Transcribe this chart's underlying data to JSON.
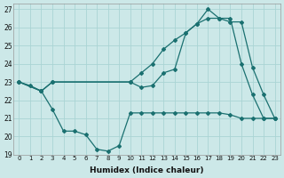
{
  "xlabel": "Humidex (Indice chaleur)",
  "bg_color": "#cce8e8",
  "line_color": "#1a7070",
  "grid_color": "#aad4d4",
  "xlim": [
    -0.5,
    23.5
  ],
  "ylim": [
    19,
    27.3
  ],
  "xticks": [
    0,
    1,
    2,
    3,
    4,
    5,
    6,
    7,
    8,
    9,
    10,
    11,
    12,
    13,
    14,
    15,
    16,
    17,
    18,
    19,
    20,
    21,
    22,
    23
  ],
  "yticks": [
    19,
    20,
    21,
    22,
    23,
    24,
    25,
    26,
    27
  ],
  "line1_x": [
    0,
    1,
    2,
    3,
    4,
    5,
    6,
    7,
    8,
    9,
    10,
    11,
    12,
    13,
    14,
    15,
    16,
    17,
    18,
    19,
    20,
    21,
    22,
    23
  ],
  "line1_y": [
    23.0,
    22.8,
    22.5,
    21.5,
    20.3,
    20.3,
    20.1,
    19.3,
    19.2,
    19.5,
    21.3,
    21.3,
    21.3,
    21.3,
    21.3,
    21.3,
    21.3,
    21.3,
    21.3,
    21.2,
    21.0,
    21.0,
    21.0,
    21.0
  ],
  "line2_x": [
    0,
    2,
    3,
    10,
    11,
    12,
    13,
    14,
    15,
    16,
    17,
    18,
    19,
    20,
    21,
    22,
    23
  ],
  "line2_y": [
    23.0,
    22.5,
    23.0,
    23.0,
    23.5,
    24.0,
    24.8,
    25.3,
    25.7,
    26.2,
    26.5,
    26.5,
    26.3,
    26.3,
    23.8,
    22.3,
    21.0
  ],
  "line3_x": [
    0,
    2,
    3,
    10,
    11,
    12,
    13,
    14,
    15,
    16,
    17,
    18,
    19,
    20,
    21,
    22,
    23
  ],
  "line3_y": [
    23.0,
    22.5,
    23.0,
    23.0,
    22.7,
    22.8,
    23.5,
    23.7,
    25.7,
    26.2,
    27.0,
    26.5,
    26.5,
    24.0,
    22.3,
    21.0,
    21.0
  ]
}
